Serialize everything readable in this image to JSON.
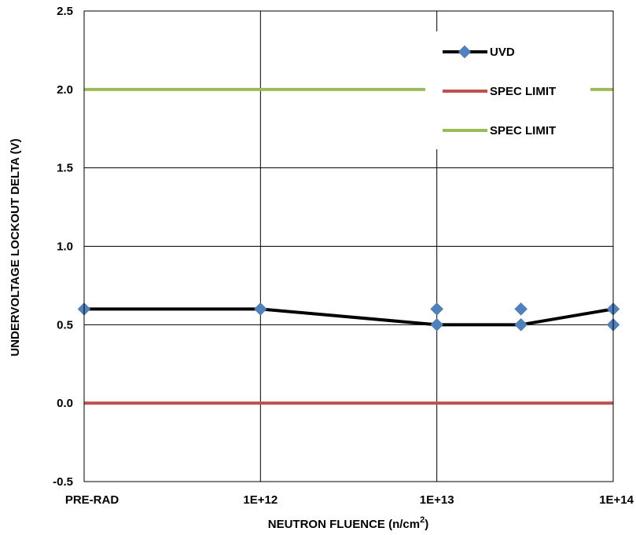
{
  "chart_data": {
    "type": "line",
    "title": "",
    "xlabel": "NEUTRON FLUENCE (n/cm",
    "xlabel_superscript": "2",
    "xlabel_suffix": ")",
    "ylabel": "UNDERVOLTAGE LOCKOUT DELTA (V)",
    "x_scale": "log",
    "x_ticks": [
      {
        "label": "PRE-RAD",
        "pos": 0
      },
      {
        "label": "1E+12",
        "pos": 1
      },
      {
        "label": "1E+13",
        "pos": 2
      },
      {
        "label": "1E+14",
        "pos": 3
      }
    ],
    "xlim": [
      0,
      3
    ],
    "ylim": [
      -0.5,
      2.5
    ],
    "y_ticks": [
      "-0.5",
      "0.0",
      "0.5",
      "1.0",
      "1.5",
      "2.0",
      "2.5"
    ],
    "y_tick_values": [
      -0.5,
      0.0,
      0.5,
      1.0,
      1.5,
      2.0,
      2.5
    ],
    "grid": true,
    "legend_position": "top-right",
    "series": [
      {
        "name": "UVD",
        "color": "#000000",
        "marker_color": "#4f81bd",
        "marker": "diamond",
        "line": [
          [
            0,
            0.6
          ],
          [
            1,
            0.6
          ],
          [
            2,
            0.5
          ],
          [
            2.477,
            0.5
          ],
          [
            3,
            0.6
          ]
        ],
        "points": [
          [
            0,
            0.6
          ],
          [
            1,
            0.6
          ],
          [
            2,
            0.6
          ],
          [
            2,
            0.5
          ],
          [
            2.477,
            0.6
          ],
          [
            2.477,
            0.5
          ],
          [
            3,
            0.6
          ],
          [
            3,
            0.5
          ]
        ]
      },
      {
        "name": "SPEC LIMIT",
        "color": "#c0504d",
        "value": 0.0
      },
      {
        "name": "SPEC LIMIT",
        "color": "#9bbb59",
        "value": 2.0
      }
    ]
  }
}
